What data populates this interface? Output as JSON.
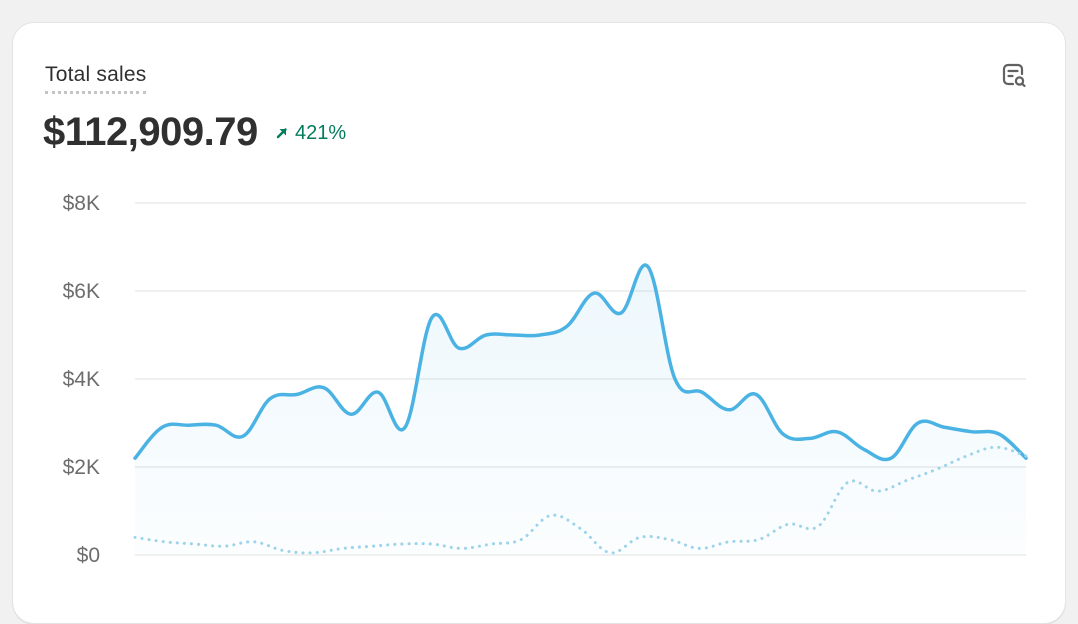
{
  "card": {
    "metric_label": "Total sales",
    "total_value": "$112,909.79",
    "change": "421%",
    "change_color": "#047b5d",
    "explore_icon": "chart-search-icon"
  },
  "chart_data": {
    "type": "line",
    "title": "Total sales",
    "ylim": [
      0,
      8000
    ],
    "y_ticks": [
      {
        "value": 0,
        "label": "$0"
      },
      {
        "value": 2000,
        "label": "$2K"
      },
      {
        "value": 4000,
        "label": "$4K"
      },
      {
        "value": 6000,
        "label": "$6K"
      },
      {
        "value": 8000,
        "label": "$8K"
      }
    ],
    "grid": true,
    "legend": "none",
    "series": [
      {
        "style": "solid",
        "color": "#4bb3e4",
        "area_fill": true,
        "values": [
          2200,
          2900,
          2950,
          2950,
          2700,
          3550,
          3650,
          3800,
          3200,
          3700,
          2900,
          5400,
          4700,
          5000,
          5000,
          5000,
          5200,
          5950,
          5500,
          6550,
          4000,
          3700,
          3300,
          3650,
          2750,
          2650,
          2800,
          2400,
          2200,
          3000,
          2900,
          2800,
          2750,
          2200
        ]
      },
      {
        "style": "dotted",
        "color": "#9cd3eb",
        "area_fill": false,
        "values": [
          400,
          300,
          250,
          200,
          300,
          100,
          50,
          150,
          200,
          250,
          250,
          150,
          250,
          350,
          900,
          600,
          50,
          400,
          350,
          150,
          300,
          350,
          700,
          650,
          1650,
          1450,
          1700,
          1950,
          2250,
          2450,
          2250
        ]
      }
    ]
  }
}
